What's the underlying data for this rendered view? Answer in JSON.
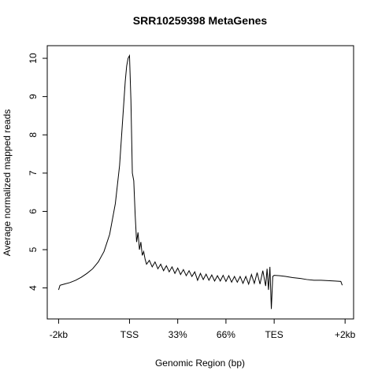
{
  "chart_data": {
    "type": "line",
    "title": "SRR10259398 MetaGenes",
    "x_label": "Genomic Region (bp)",
    "y_label": "Average normalized mapped reads",
    "color": "#000000",
    "x": [
      0,
      1,
      4,
      8,
      12,
      16,
      20,
      24,
      28,
      32,
      36,
      40,
      43,
      45,
      47,
      48,
      49,
      50,
      51,
      52,
      53,
      54,
      55,
      56,
      57,
      58,
      59,
      60,
      61,
      62,
      64,
      66,
      68,
      70,
      72,
      74,
      76,
      78,
      80,
      82,
      84,
      86,
      88,
      90,
      92,
      94,
      96,
      98,
      100,
      102,
      104,
      106,
      108,
      110,
      112,
      114,
      116,
      118,
      120,
      122,
      124,
      126,
      128,
      130,
      132,
      134,
      136,
      138,
      140,
      142,
      144,
      146,
      147,
      148,
      149,
      150,
      151,
      152,
      156,
      160,
      165,
      170,
      175,
      180,
      185,
      190,
      195,
      199,
      200
    ],
    "values": [
      3.95,
      4.07,
      4.1,
      4.14,
      4.2,
      4.28,
      4.38,
      4.5,
      4.68,
      4.95,
      5.4,
      6.2,
      7.2,
      8.3,
      9.4,
      9.8,
      10.0,
      10.07,
      8.9,
      7.0,
      6.8,
      5.9,
      5.2,
      5.45,
      5.0,
      5.2,
      4.85,
      4.95,
      4.75,
      4.62,
      4.72,
      4.55,
      4.68,
      4.5,
      4.62,
      4.45,
      4.58,
      4.42,
      4.55,
      4.38,
      4.52,
      4.35,
      4.48,
      4.32,
      4.45,
      4.3,
      4.42,
      4.2,
      4.38,
      4.22,
      4.36,
      4.2,
      4.34,
      4.18,
      4.32,
      4.18,
      4.33,
      4.17,
      4.32,
      4.15,
      4.3,
      4.15,
      4.3,
      4.12,
      4.3,
      4.1,
      4.35,
      4.12,
      4.4,
      4.1,
      4.45,
      4.05,
      4.5,
      3.95,
      4.55,
      3.45,
      4.3,
      4.33,
      4.32,
      4.3,
      4.27,
      4.25,
      4.22,
      4.2,
      4.2,
      4.19,
      4.18,
      4.17,
      4.07
    ],
    "xlim": [
      -8,
      208
    ],
    "ylim": [
      3.19,
      10.33
    ],
    "xticks": [
      {
        "value": 0,
        "label": "-2kb"
      },
      {
        "value": 50,
        "label": "TSS"
      },
      {
        "value": 84,
        "label": "33%"
      },
      {
        "value": 118,
        "label": "66%"
      },
      {
        "value": 152,
        "label": "TES"
      },
      {
        "value": 202,
        "label": "+2kb"
      }
    ],
    "yticks": [
      4,
      5,
      6,
      7,
      8,
      9,
      10
    ]
  }
}
